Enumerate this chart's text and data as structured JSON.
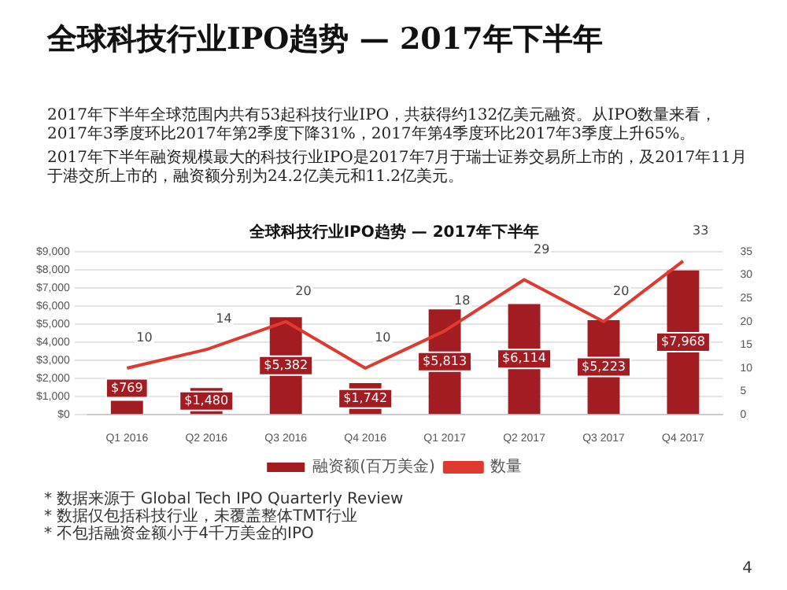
{
  "chart_data": {
    "type": "bar",
    "title": "全球科技行业IPO趋势 — 2017年下半年",
    "subtitle": "全球科技行业IPO趋势 — 2017年下半年",
    "categories": [
      "Q1 2016",
      "Q2 2016",
      "Q3 2016",
      "Q4 2016",
      "Q1 2017",
      "Q2 2017",
      "Q3 2017",
      "Q4 2017"
    ],
    "series": [
      {
        "name": "融资额(百万美金)",
        "color": "#a31c22",
        "values": [
          769,
          1480,
          5382,
          1742,
          5813,
          6114,
          5223,
          7968
        ],
        "value_labels": [
          "$769",
          "$1,480",
          "$5,382",
          "$1,742",
          "$5,813",
          "$6,114",
          "$5,223",
          "$7,968"
        ]
      },
      {
        "name": "数量",
        "type": "line",
        "axis": "y2",
        "color": "#e03a30",
        "values": [
          10,
          14,
          20,
          10,
          18,
          29,
          20,
          33
        ],
        "value_labels": [
          "10",
          "14",
          "20",
          "10",
          "18",
          "29",
          "20",
          "33"
        ]
      }
    ],
    "ylim": [
      0,
      9000
    ],
    "yticks": [
      {
        "value": 0,
        "label": "$0"
      },
      {
        "value": 1000,
        "label": "$1,000"
      },
      {
        "value": 2000,
        "label": "$2,000"
      },
      {
        "value": 3000,
        "label": "$3,000"
      },
      {
        "value": 4000,
        "label": "$4,000"
      },
      {
        "value": 5000,
        "label": "$5,000"
      },
      {
        "value": 6000,
        "label": "$6,000"
      },
      {
        "value": 7000,
        "label": "$7,000"
      },
      {
        "value": 8000,
        "label": "$8,000"
      },
      {
        "value": 9000,
        "label": "$9,000"
      }
    ],
    "y2lim": [
      0,
      35
    ],
    "y2ticks": [
      0,
      5,
      10,
      15,
      20,
      25,
      30,
      35
    ],
    "grid": "y",
    "legend": "bottom",
    "marker": "none",
    "annotations": [
      "2017年下半年全球范围内共有53起科技行业IPO，共获得约132亿美元融资。从IPO数量来看，2017年3季度环比2017年第2季度下降31%，2017年第4季度环比2017年3季度上升65%。",
      "2017年下半年融资规模最大的科技行业IPO是2017年7月于瑞士证券交易所上市的，及2017年11月于港交所上市的，融资额分别为24.2亿美元和11.2亿美元。",
      "* 数据来源于 Global Tech IPO Quarterly Review",
      "* 数据仅包括科技行业，未覆盖整体TMT行业",
      "* 不包括融资金额小于4千万美金的IPO",
      "4"
    ]
  }
}
